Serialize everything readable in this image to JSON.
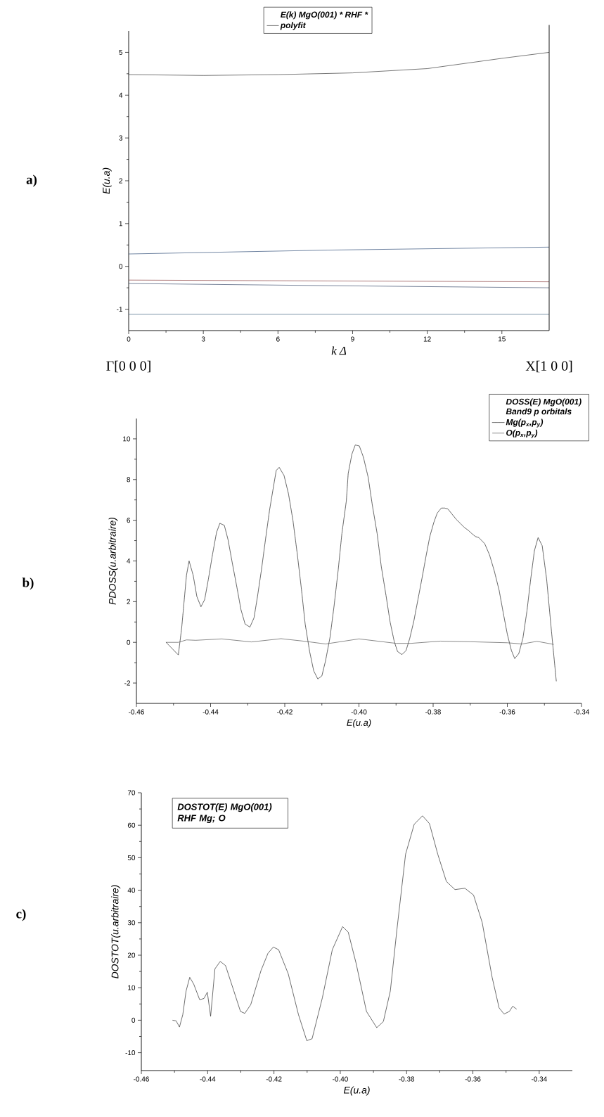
{
  "chart_data": [
    {
      "type": "line",
      "ylabel": "E(u.a)",
      "xlabel": "k  Δ",
      "legend_title": "E(k) MgO(001)  * RHF *",
      "legend": "top",
      "xlim": [
        0,
        16.9
      ],
      "ylim": [
        -1.5,
        5.5
      ],
      "xticks": [
        0,
        3,
        6,
        9,
        12,
        15
      ],
      "yticks": [
        -1,
        0,
        1,
        2,
        3,
        4,
        5
      ],
      "annotations": [
        "a)",
        "Γ[0 0 0]",
        "X[1 0 0]"
      ],
      "series": [
        {
          "name": "polyfit",
          "color": "#3b3b3b",
          "x": [
            0,
            3,
            6,
            9,
            12,
            15,
            16.9
          ],
          "values": [
            4.48,
            4.46,
            4.48,
            4.52,
            4.62,
            4.86,
            5.0
          ]
        },
        {
          "color": "#34507a",
          "x": [
            0,
            8,
            16.9
          ],
          "values": [
            0.29,
            0.38,
            0.45
          ]
        },
        {
          "color": "#8a4040",
          "x": [
            0,
            8,
            16.9
          ],
          "values": [
            -0.32,
            -0.34,
            -0.36
          ]
        },
        {
          "color": "#3c4e6e",
          "x": [
            0,
            8,
            16.9
          ],
          "values": [
            -0.4,
            -0.45,
            -0.5
          ]
        },
        {
          "color": "#4a6a86",
          "x": [
            0,
            16.9
          ],
          "values": [
            -1.12,
            -1.12
          ]
        }
      ]
    },
    {
      "type": "line",
      "ylabel": "PDOSS(u.arbitraire)",
      "xlabel": "E(u.a)",
      "legend_title": "DOSS(E) MgO(001) Band9 *p orbitals*",
      "legend": "top right",
      "xlim": [
        -0.46,
        -0.34
      ],
      "ylim": [
        -3,
        11
      ],
      "xticks": [
        -0.46,
        -0.44,
        -0.42,
        {
          "value": -0.4,
          "label": "-0.40"
        },
        -0.38,
        -0.36,
        -0.34
      ],
      "yticks": [
        -2,
        0,
        2,
        4,
        6,
        8,
        10
      ],
      "annotations": [
        "b)"
      ],
      "series": [
        {
          "name": "Mg(p$_{x}$,p$_{y}$)",
          "color": "#2e2e2e",
          "line_style": "dashed",
          "x": [
            -0.452,
            -0.4487,
            -0.4478,
            -0.4465,
            -0.4458,
            -0.4447,
            -0.4437,
            -0.4426,
            -0.4416,
            -0.4406,
            -0.4395,
            -0.4384,
            -0.4375,
            -0.4363,
            -0.4353,
            -0.4342,
            -0.4329,
            -0.4318,
            -0.4307,
            -0.4294,
            -0.4283,
            -0.4274,
            -0.4263,
            -0.4252,
            -0.4241,
            -0.423,
            -0.4223,
            -0.4215,
            -0.4202,
            -0.419,
            -0.4178,
            -0.4166,
            -0.4155,
            -0.4145,
            -0.4133,
            -0.4122,
            -0.4111,
            -0.41,
            -0.409,
            -0.4078,
            -0.4067,
            -0.4056,
            -0.4046,
            -0.4034,
            -0.4029,
            -0.4019,
            -0.401,
            -0.3999,
            -0.3988,
            -0.3975,
            -0.3964,
            -0.3951,
            -0.394,
            -0.3927,
            -0.3916,
            -0.3905,
            -0.3896,
            -0.3884,
            -0.3873,
            -0.3863,
            -0.3852,
            -0.3841,
            -0.3829,
            -0.3819,
            -0.3809,
            -0.3798,
            -0.3789,
            -0.3778,
            -0.3769,
            -0.376,
            -0.3749,
            -0.3738,
            -0.3727,
            -0.3716,
            -0.3705,
            -0.3696,
            -0.3686,
            -0.3677,
            -0.3661,
            -0.3648,
            -0.3635,
            -0.3622,
            -0.3611,
            -0.36,
            -0.3589,
            -0.358,
            -0.3569,
            -0.3558,
            -0.3547,
            -0.3537,
            -0.3527,
            -0.3517,
            -0.3506,
            -0.3494,
            -0.3481,
            -0.3468
          ],
          "values": [
            0,
            -0.62,
            0.7,
            3.3,
            4.0,
            3.3,
            2.25,
            1.75,
            2.1,
            3.1,
            4.3,
            5.4,
            5.85,
            5.75,
            5.05,
            3.95,
            2.7,
            1.6,
            0.9,
            0.75,
            1.2,
            2.2,
            3.55,
            5.05,
            6.5,
            7.7,
            8.45,
            8.6,
            8.2,
            7.3,
            6.0,
            4.3,
            2.6,
            0.9,
            -0.45,
            -1.4,
            -1.8,
            -1.65,
            -0.9,
            0.25,
            1.8,
            3.55,
            5.35,
            6.95,
            8.3,
            9.25,
            9.7,
            9.65,
            9.1,
            8.1,
            6.75,
            5.35,
            3.75,
            2.3,
            1.0,
            0.05,
            -0.45,
            -0.6,
            -0.4,
            0.2,
            1.05,
            2.1,
            3.25,
            4.25,
            5.2,
            5.9,
            6.35,
            6.6,
            6.6,
            6.55,
            6.3,
            6.05,
            5.85,
            5.65,
            5.5,
            5.35,
            5.2,
            5.15,
            4.85,
            4.3,
            3.5,
            2.55,
            1.45,
            0.4,
            -0.4,
            -0.8,
            -0.55,
            0.2,
            1.55,
            3.1,
            4.5,
            5.15,
            4.75,
            3.1,
            0.55,
            -1.9
          ]
        },
        {
          "name": "O(p$_{x}$,p$_{y}$)",
          "color": "#555555",
          "line_style": "solid",
          "x": [
            -0.452,
            -0.4487,
            -0.4465,
            -0.444,
            -0.437,
            -0.429,
            -0.421,
            -0.4145,
            -0.409,
            -0.4,
            -0.39,
            -0.386,
            -0.378,
            -0.37,
            -0.36,
            -0.356,
            -0.352,
            -0.3475
          ],
          "values": [
            0,
            0,
            0.12,
            0.1,
            0.17,
            0.02,
            0.18,
            0.05,
            -0.08,
            0.17,
            -0.05,
            -0.05,
            0.06,
            0.03,
            -0.02,
            -0.08,
            0.05,
            -0.1
          ]
        }
      ]
    },
    {
      "type": "line",
      "ylabel": "DOSTOT(u.arbitraire)",
      "xlabel": "E(u.a)",
      "legend_title": "DOSTOT(E) MgO(001) RHF Mg; O",
      "xlim": [
        -0.46,
        -0.33
      ],
      "ylim": [
        -15.5,
        70
      ],
      "xticks": [
        -0.46,
        -0.44,
        -0.42,
        {
          "value": -0.4,
          "label": "-0.40"
        },
        -0.38,
        -0.36,
        -0.34
      ],
      "yticks": [
        -10,
        0,
        10,
        20,
        30,
        40,
        50,
        60,
        70
      ],
      "annotations": [
        "c)"
      ],
      "x": [
        -0.4506,
        -0.4495,
        -0.4485,
        -0.4475,
        -0.4465,
        -0.4454,
        -0.4442,
        -0.4424,
        -0.4411,
        -0.4401,
        -0.4391,
        -0.4378,
        -0.4362,
        -0.4346,
        -0.4321,
        -0.4301,
        -0.4288,
        -0.427,
        -0.4239,
        -0.4218,
        -0.4202,
        -0.4186,
        -0.4157,
        -0.4126,
        -0.4101,
        -0.4085,
        -0.4054,
        -0.4024,
        -0.3993,
        -0.3976,
        -0.3952,
        -0.3921,
        -0.389,
        -0.387,
        -0.3849,
        -0.3829,
        -0.3803,
        -0.3777,
        -0.3752,
        -0.3731,
        -0.3706,
        -0.368,
        -0.3654,
        -0.3624,
        -0.3598,
        -0.3572,
        -0.3542,
        -0.3521,
        -0.3506,
        -0.349,
        -0.348,
        -0.3468
      ],
      "series": [
        {
          "color": "#2e2e2e",
          "values": [
            0,
            -0.2,
            -2.1,
            1.7,
            9.0,
            13.2,
            11.1,
            6.3,
            6.7,
            8.6,
            1.2,
            15.8,
            18.1,
            16.8,
            9.0,
            2.7,
            2.1,
            4.8,
            15.3,
            20.6,
            22.5,
            21.7,
            14.3,
            1.7,
            -6.3,
            -5.7,
            6.9,
            21.7,
            28.8,
            27.1,
            17.4,
            2.7,
            -2.3,
            -0.4,
            9.0,
            28.0,
            51.1,
            60.3,
            62.9,
            60.5,
            51.1,
            42.7,
            40.2,
            40.6,
            38.5,
            30.1,
            13.2,
            3.8,
            1.9,
            2.7,
            4.3,
            3.4
          ]
        }
      ]
    }
  ]
}
